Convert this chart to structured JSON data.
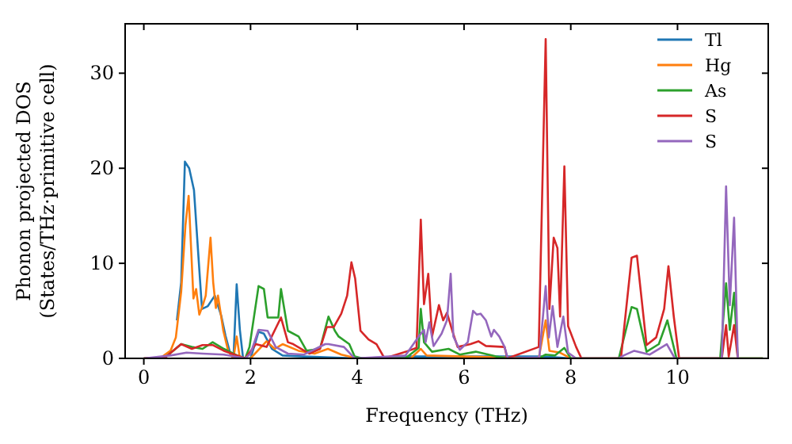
{
  "chart_data": {
    "type": "line",
    "xlabel": "Frequency (THz)",
    "ylabel": "Phonon projected DOS\n(States/THz·primitive cell)",
    "xlim": [
      -0.35,
      11.7
    ],
    "ylim": [
      0,
      35.2
    ],
    "xticks": [
      0,
      2,
      4,
      6,
      8,
      10
    ],
    "yticks": [
      0,
      10,
      20,
      30
    ],
    "grid": false,
    "legend": "top right",
    "marker": "none",
    "line_style": "solid",
    "series": [
      {
        "name": "Tl",
        "color": "#1f77b4",
        "x": [
          0.62,
          0.7,
          0.77,
          0.85,
          0.94,
          1.02,
          1.09,
          1.2,
          1.33,
          1.45,
          1.53,
          1.62,
          1.68,
          1.74,
          1.8,
          1.86,
          2.0,
          2.15,
          2.25,
          2.4,
          2.6,
          3.0,
          4.0,
          5.0,
          6.0,
          7.5,
          8.0,
          11.6
        ],
        "values": [
          4,
          8,
          20.7,
          20,
          17.7,
          11,
          5.2,
          5.5,
          6.6,
          4.5,
          2.4,
          0.5,
          0,
          7.8,
          3,
          0,
          0,
          2.8,
          2.6,
          1,
          0.3,
          0.2,
          0,
          0.2,
          0.2,
          0.2,
          0,
          0
        ]
      },
      {
        "name": "Hg",
        "color": "#ff7f0e",
        "x": [
          0,
          0.3,
          0.5,
          0.6,
          0.7,
          0.78,
          0.84,
          0.93,
          0.98,
          1.04,
          1.1,
          1.16,
          1.25,
          1.3,
          1.35,
          1.39,
          1.49,
          1.58,
          1.68,
          1.74,
          1.8,
          1.9,
          2.0,
          2.3,
          2.45,
          2.6,
          2.9,
          3.2,
          3.45,
          3.7,
          4.0,
          5.0,
          5.19,
          5.3,
          6.0,
          7.4,
          7.53,
          7.6,
          7.8,
          8.0,
          11.6
        ],
        "values": [
          0,
          0,
          0.8,
          2.2,
          7,
          14,
          17.1,
          6.3,
          7.3,
          4.6,
          5.5,
          6.6,
          12.7,
          8,
          5.3,
          6.6,
          2.9,
          0.8,
          0,
          2.3,
          0,
          0,
          0,
          1.8,
          1,
          1.5,
          0.8,
          0.5,
          1,
          0.4,
          0,
          0,
          1,
          0.3,
          0.2,
          0,
          4,
          0.8,
          0.6,
          0,
          0
        ]
      },
      {
        "name": "As",
        "color": "#2ca02c",
        "x": [
          0,
          0.4,
          0.7,
          0.9,
          1.1,
          1.29,
          1.5,
          1.75,
          1.9,
          1.98,
          2.15,
          2.25,
          2.32,
          2.52,
          2.57,
          2.7,
          2.9,
          3.05,
          3.3,
          3.46,
          3.58,
          3.65,
          3.85,
          3.95,
          4.1,
          4.9,
          5.15,
          5.19,
          5.25,
          5.4,
          5.71,
          5.92,
          6.22,
          6.6,
          6.8,
          7.4,
          7.53,
          7.7,
          7.88,
          8.0,
          8.9,
          9.14,
          9.24,
          9.42,
          9.65,
          9.81,
          9.98,
          10.8,
          10.91,
          10.98,
          11.06,
          11.13,
          11.6
        ],
        "values": [
          0,
          0.1,
          1.5,
          1.2,
          1,
          1.7,
          1,
          0.3,
          0,
          1.2,
          7.6,
          7.3,
          4.3,
          4.3,
          7.3,
          2.9,
          2.3,
          0.8,
          1,
          4.4,
          2.9,
          2.3,
          1.5,
          0.2,
          0,
          0,
          1.1,
          5.2,
          1.7,
          0.7,
          1,
          0.4,
          0.7,
          0.2,
          0,
          0,
          0.4,
          0.3,
          1.1,
          0,
          0,
          5.4,
          5.2,
          0.7,
          1.5,
          4,
          0,
          0,
          7.9,
          3,
          6.9,
          0,
          0
        ]
      },
      {
        "name": "S",
        "color": "#d62728",
        "x": [
          0,
          0.4,
          0.7,
          0.9,
          1.1,
          1.29,
          1.5,
          1.75,
          1.9,
          2.1,
          2.3,
          2.57,
          2.7,
          2.8,
          3.1,
          3.3,
          3.43,
          3.56,
          3.7,
          3.81,
          3.89,
          3.96,
          4.06,
          4.21,
          4.36,
          4.51,
          4.91,
          5.11,
          5.19,
          5.25,
          5.33,
          5.4,
          5.53,
          5.61,
          5.68,
          5.78,
          5.88,
          6.12,
          6.27,
          6.41,
          6.76,
          6.81,
          7.4,
          7.53,
          7.6,
          7.68,
          7.75,
          7.8,
          7.88,
          7.95,
          8.1,
          8.2,
          8.94,
          9.14,
          9.24,
          9.42,
          9.6,
          9.75,
          9.83,
          9.93,
          10.03,
          10.83,
          10.91,
          10.96,
          11.06,
          11.13
        ],
        "values": [
          0,
          0.1,
          1.5,
          1,
          1.4,
          1.4,
          0.8,
          0.3,
          0,
          1.5,
          1.2,
          4.3,
          1.7,
          1.5,
          0.5,
          1,
          3.3,
          3.3,
          4.7,
          6.6,
          10.1,
          8.4,
          2.9,
          2,
          1.5,
          0,
          0.7,
          1.1,
          14.6,
          5.7,
          8.9,
          2.3,
          5.6,
          4,
          4.8,
          2.9,
          1.2,
          1.5,
          1.8,
          1.3,
          1.2,
          0,
          1.2,
          33.6,
          5.2,
          12.7,
          11.6,
          4.4,
          20.2,
          3.4,
          1.2,
          0,
          0,
          10.6,
          10.8,
          1.4,
          2.2,
          5.2,
          9.7,
          4.4,
          0,
          0,
          3.5,
          0.2,
          3.5,
          0
        ]
      },
      {
        "name": "S",
        "color": "#9467bd",
        "x": [
          0,
          0.5,
          0.8,
          1.1,
          1.5,
          1.9,
          2.0,
          2.15,
          2.32,
          2.47,
          2.7,
          3.0,
          3.4,
          3.46,
          3.75,
          3.95,
          4.9,
          5.15,
          5.25,
          5.28,
          5.35,
          5.43,
          5.58,
          5.68,
          5.75,
          5.8,
          5.92,
          6.07,
          6.17,
          6.24,
          6.31,
          6.41,
          6.51,
          6.56,
          6.66,
          6.76,
          6.82,
          7.41,
          7.53,
          7.59,
          7.66,
          7.75,
          7.86,
          7.95,
          8.1,
          8.9,
          8.99,
          9.19,
          9.48,
          9.8,
          9.95,
          10.83,
          10.91,
          10.98,
          11.06,
          11.13
        ],
        "values": [
          0,
          0.3,
          0.6,
          0.5,
          0.4,
          0,
          0.5,
          3,
          2.9,
          1.2,
          0.5,
          0.4,
          1.5,
          1.5,
          1.2,
          0,
          0.3,
          2.3,
          3,
          1.7,
          3.8,
          1.3,
          2.6,
          4,
          8.9,
          2.3,
          0.9,
          1.7,
          5,
          4.6,
          4.7,
          4,
          2.3,
          3,
          2.3,
          1.2,
          0,
          0.1,
          7.6,
          2.2,
          5.5,
          1.2,
          4.4,
          0.6,
          0,
          0,
          0.3,
          0.8,
          0.4,
          1.5,
          0,
          0,
          18.1,
          5.6,
          14.8,
          0
        ]
      }
    ]
  }
}
